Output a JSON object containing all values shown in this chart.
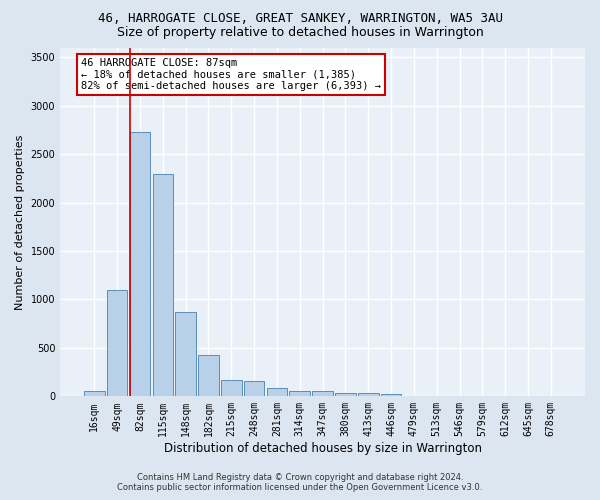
{
  "title": "46, HARROGATE CLOSE, GREAT SANKEY, WARRINGTON, WA5 3AU",
  "subtitle": "Size of property relative to detached houses in Warrington",
  "xlabel": "Distribution of detached houses by size in Warrington",
  "ylabel": "Number of detached properties",
  "footer_line1": "Contains HM Land Registry data © Crown copyright and database right 2024.",
  "footer_line2": "Contains public sector information licensed under the Open Government Licence v3.0.",
  "bins": [
    "16sqm",
    "49sqm",
    "82sqm",
    "115sqm",
    "148sqm",
    "182sqm",
    "215sqm",
    "248sqm",
    "281sqm",
    "314sqm",
    "347sqm",
    "380sqm",
    "413sqm",
    "446sqm",
    "479sqm",
    "513sqm",
    "546sqm",
    "579sqm",
    "612sqm",
    "645sqm",
    "678sqm"
  ],
  "values": [
    50,
    1100,
    2730,
    2290,
    875,
    430,
    170,
    160,
    90,
    60,
    50,
    35,
    30,
    20,
    0,
    0,
    0,
    0,
    0,
    0,
    0
  ],
  "bar_color": "#b8d0e8",
  "bar_edge_color": "#5b8db8",
  "highlight_bin_index": 2,
  "annotation_text": "46 HARROGATE CLOSE: 87sqm\n← 18% of detached houses are smaller (1,385)\n82% of semi-detached houses are larger (6,393) →",
  "annotation_box_color": "#ffffff",
  "annotation_box_edge_color": "#cc0000",
  "vline_color": "#cc0000",
  "ylim": [
    0,
    3600
  ],
  "yticks": [
    0,
    500,
    1000,
    1500,
    2000,
    2500,
    3000,
    3500
  ],
  "bg_color": "#dce6f0",
  "plot_bg_color": "#eaf0f8",
  "grid_color": "#ffffff",
  "title_fontsize": 9,
  "subtitle_fontsize": 9,
  "xlabel_fontsize": 8.5,
  "ylabel_fontsize": 8,
  "tick_fontsize": 7
}
